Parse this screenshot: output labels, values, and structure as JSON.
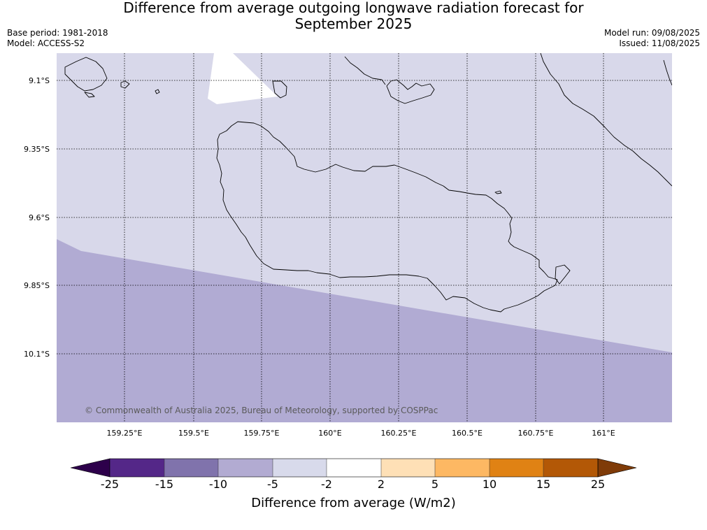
{
  "title_line1": "Difference from average outgoing longwave radiation forecast for",
  "title_line2": "September 2025",
  "base_period": "Base period: 1981-2018",
  "model": "Model: ACCESS-S2",
  "model_run": "Model run: 09/08/2025",
  "issued": "Issued: 11/08/2025",
  "copyright": "© Commonwealth of Australia 2025, Bureau of Meteorology, supported by COSPPac",
  "map": {
    "latitudes": [
      "9.1°S",
      "9.35°S",
      "9.6°S",
      "9.85°S",
      "10.1°S"
    ],
    "longitudes": [
      "159.25°E",
      "159.5°E",
      "159.75°E",
      "160°E",
      "160.25°E",
      "160.5°E",
      "160.75°E",
      "161°E"
    ],
    "regions": [
      {
        "name": "north",
        "bin": "-5 to -2",
        "color": "#d8d8ea"
      },
      {
        "name": "south",
        "bin": "-10 to -5",
        "color": "#b1abd3"
      },
      {
        "name": "patch",
        "bin": "-2 to 2",
        "color": "#ffffff"
      }
    ]
  },
  "colorbar": {
    "label": "Difference from average (W/m2)",
    "ticks": [
      "-25",
      "-15",
      "-10",
      "-5",
      "-2",
      "2",
      "5",
      "10",
      "15",
      "25"
    ],
    "under_color": "#2d004b",
    "over_color": "#7f3b08",
    "colors": [
      "#542788",
      "#8073ac",
      "#b2abd2",
      "#d8daeb",
      "#ffffff",
      "#fee0b6",
      "#fdb863",
      "#e08214",
      "#b35806"
    ]
  },
  "chart_data": {
    "type": "heatmap",
    "title": "Difference from average outgoing longwave radiation forecast for September 2025",
    "colorbar_label": "Difference from average (W/m2)",
    "bounds": [
      -25,
      -15,
      -10,
      -5,
      -2,
      2,
      5,
      10,
      15,
      25
    ],
    "lat_ticks": [
      -9.1,
      -9.35,
      -9.6,
      -9.85,
      -10.1
    ],
    "lon_ticks": [
      159.25,
      159.5,
      159.75,
      160.0,
      160.25,
      160.5,
      160.75,
      161.0
    ],
    "grid": true
  }
}
